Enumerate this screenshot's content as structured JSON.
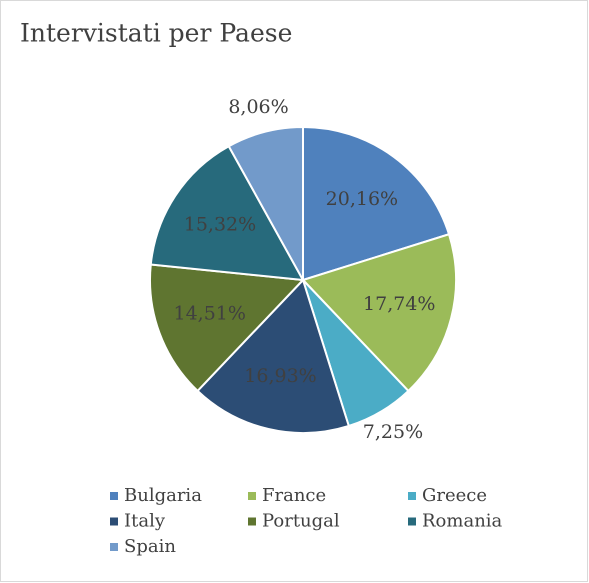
{
  "chart_data": {
    "type": "pie",
    "title": "Intervistati per Paese",
    "categories": [
      "Bulgaria",
      "France",
      "Greece",
      "Italy",
      "Portugal",
      "Romania",
      "Spain"
    ],
    "values": [
      20.16,
      17.74,
      7.25,
      16.93,
      14.51,
      15.32,
      8.06
    ],
    "value_labels": [
      "20,16%",
      "17,74%",
      "7,25%",
      "16,93%",
      "14,51%",
      "15,32%",
      "8,06%"
    ],
    "colors": [
      "#4f81bd",
      "#9bbb59",
      "#4bacc6",
      "#2c4d75",
      "#5f7530",
      "#276a7c",
      "#729aca"
    ],
    "legend": "bottom"
  }
}
